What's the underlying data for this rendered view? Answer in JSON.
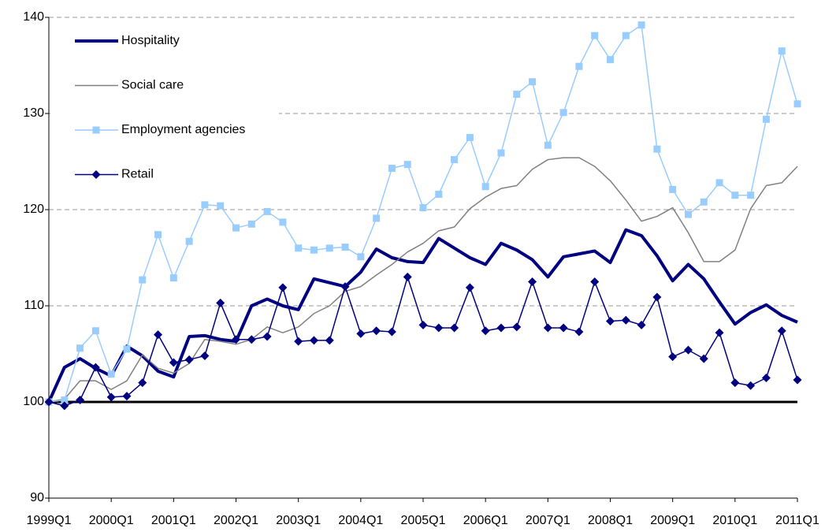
{
  "chart_data": {
    "type": "line",
    "categories": [
      "1999Q1",
      null,
      null,
      null,
      "2000Q1",
      null,
      null,
      null,
      "2001Q1",
      null,
      null,
      null,
      "2002Q1",
      null,
      null,
      null,
      "2003Q1",
      null,
      null,
      null,
      "2004Q1",
      null,
      null,
      null,
      "2005Q1",
      null,
      null,
      null,
      "2006Q1",
      null,
      null,
      null,
      "2007Q1",
      null,
      null,
      null,
      "2008Q1",
      null,
      null,
      null,
      "2009Q1",
      null,
      null,
      null,
      "2010Q1",
      null,
      null,
      null,
      "2011Q1"
    ],
    "ylim": [
      90,
      140
    ],
    "yticks": [
      90,
      100,
      110,
      120,
      130,
      140
    ],
    "grid": true,
    "legend": "top-left",
    "series": [
      {
        "name": "Hospitality",
        "color": "#000080",
        "width": 4,
        "values": [
          100,
          103.6,
          104.5,
          103.5,
          102.7,
          105.8,
          104.8,
          103.2,
          102.6,
          106.8,
          106.9,
          106.5,
          106.3,
          110.0,
          110.7,
          110.0,
          109.6,
          112.8,
          112.4,
          112.0,
          113.5,
          115.9,
          115.0,
          114.6,
          114.5,
          117.0,
          116.0,
          115.0,
          114.3,
          116.5,
          115.8,
          114.8,
          113.0,
          115.1,
          115.4,
          115.7,
          114.5,
          117.9,
          117.3,
          115.2,
          112.6,
          114.3,
          112.8,
          110.4,
          108.1,
          109.3,
          110.1,
          109.0,
          108.3
        ]
      },
      {
        "name": "Social care",
        "color": "#808080",
        "width": 1.5,
        "values": [
          100,
          100.3,
          102.2,
          102.2,
          101.3,
          102.2,
          104.9,
          103.5,
          103.0,
          104.0,
          106.5,
          106.3,
          106.0,
          106.5,
          107.8,
          107.2,
          107.8,
          109.2,
          110.0,
          111.5,
          112.0,
          113.2,
          114.3,
          115.6,
          116.5,
          117.8,
          118.2,
          120.1,
          121.3,
          122.2,
          122.5,
          124.2,
          125.2,
          125.4,
          125.4,
          124.5,
          123.0,
          121.0,
          118.8,
          119.3,
          120.2,
          117.6,
          114.6,
          114.6,
          115.8,
          120.1,
          122.5,
          122.8,
          124.5
        ]
      },
      {
        "name": "Employment agencies",
        "color": "#99ccff",
        "width": 1.5,
        "marker": "square",
        "values": [
          100,
          100.2,
          105.6,
          107.4,
          102.9,
          105.5,
          112.7,
          117.4,
          112.9,
          116.7,
          120.5,
          120.4,
          118.1,
          118.5,
          119.8,
          118.7,
          116.0,
          115.8,
          116.0,
          116.1,
          115.1,
          119.1,
          124.3,
          124.7,
          120.2,
          121.6,
          125.2,
          127.5,
          122.4,
          125.9,
          132.0,
          133.3,
          126.7,
          130.1,
          134.9,
          138.1,
          135.6,
          138.1,
          139.2,
          126.3,
          122.1,
          119.5,
          120.8,
          122.8,
          121.5,
          121.5,
          129.4,
          136.5,
          131.0
        ]
      },
      {
        "name": "Retail",
        "color": "#000080",
        "width": 1.5,
        "marker": "diamond",
        "values": [
          100,
          99.6,
          100.2,
          103.6,
          100.5,
          100.6,
          102.0,
          107.0,
          104.1,
          104.4,
          104.8,
          110.3,
          106.5,
          106.5,
          106.8,
          111.9,
          106.3,
          106.4,
          106.4,
          112.0,
          107.1,
          107.4,
          107.3,
          113.0,
          108.0,
          107.7,
          107.7,
          111.9,
          107.4,
          107.7,
          107.8,
          112.5,
          107.7,
          107.7,
          107.3,
          112.5,
          108.4,
          108.5,
          108.0,
          110.9,
          104.7,
          105.4,
          104.5,
          107.2,
          102.0,
          101.7,
          102.5,
          107.4,
          102.3
        ]
      }
    ]
  }
}
